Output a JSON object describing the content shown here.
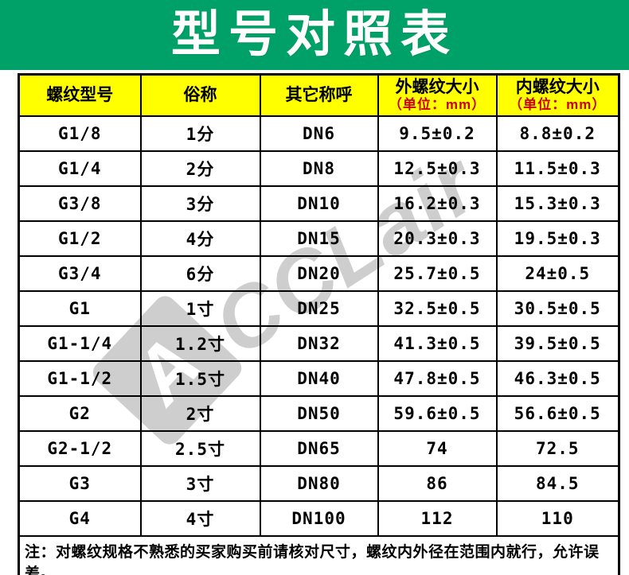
{
  "title": "型号对照表",
  "colors": {
    "banner_green": "#00a169",
    "header_yellow": "#ffff00",
    "unit_red": "#cc0000",
    "watermark_gray": "#c6c6c6"
  },
  "table": {
    "headers": [
      {
        "label": "螺纹型号",
        "sub": ""
      },
      {
        "label": "俗称",
        "sub": ""
      },
      {
        "label": "其它称呼",
        "sub": ""
      },
      {
        "label": "外螺纹大小",
        "sub": "（单位：mm）"
      },
      {
        "label": "内螺纹大小",
        "sub": "（单位：mm）"
      }
    ],
    "rows": [
      [
        "G1/8",
        "1分",
        "DN6",
        "9.5±0.2",
        "8.8±0.2"
      ],
      [
        "G1/4",
        "2分",
        "DN8",
        "12.5±0.3",
        "11.5±0.3"
      ],
      [
        "G3/8",
        "3分",
        "DN10",
        "16.2±0.3",
        "15.3±0.3"
      ],
      [
        "G1/2",
        "4分",
        "DN15",
        "20.3±0.3",
        "19.5±0.3"
      ],
      [
        "G3/4",
        "6分",
        "DN20",
        "25.7±0.5",
        "24±0.5"
      ],
      [
        "G1",
        "1寸",
        "DN25",
        "32.5±0.5",
        "30.5±0.5"
      ],
      [
        "G1-1/4",
        "1.2寸",
        "DN32",
        "41.3±0.5",
        "39.5±0.5"
      ],
      [
        "G1-1/2",
        "1.5寸",
        "DN40",
        "47.8±0.5",
        "46.3±0.5"
      ],
      [
        "G2",
        "2寸",
        "DN50",
        "59.6±0.5",
        "56.6±0.5"
      ],
      [
        "G2-1/2",
        "2.5寸",
        "DN65",
        "74",
        "72.5"
      ],
      [
        "G3",
        "3寸",
        "DN80",
        "86",
        "84.5"
      ],
      [
        "G4",
        "4寸",
        "DN100",
        "112",
        "110"
      ]
    ]
  },
  "note": "注：对螺纹规格不熟悉的买家购买前请核对尺寸，螺纹内外径在范围内就行，允许误差。",
  "watermark": {
    "logo_letter": "A",
    "text": "CCLair"
  }
}
